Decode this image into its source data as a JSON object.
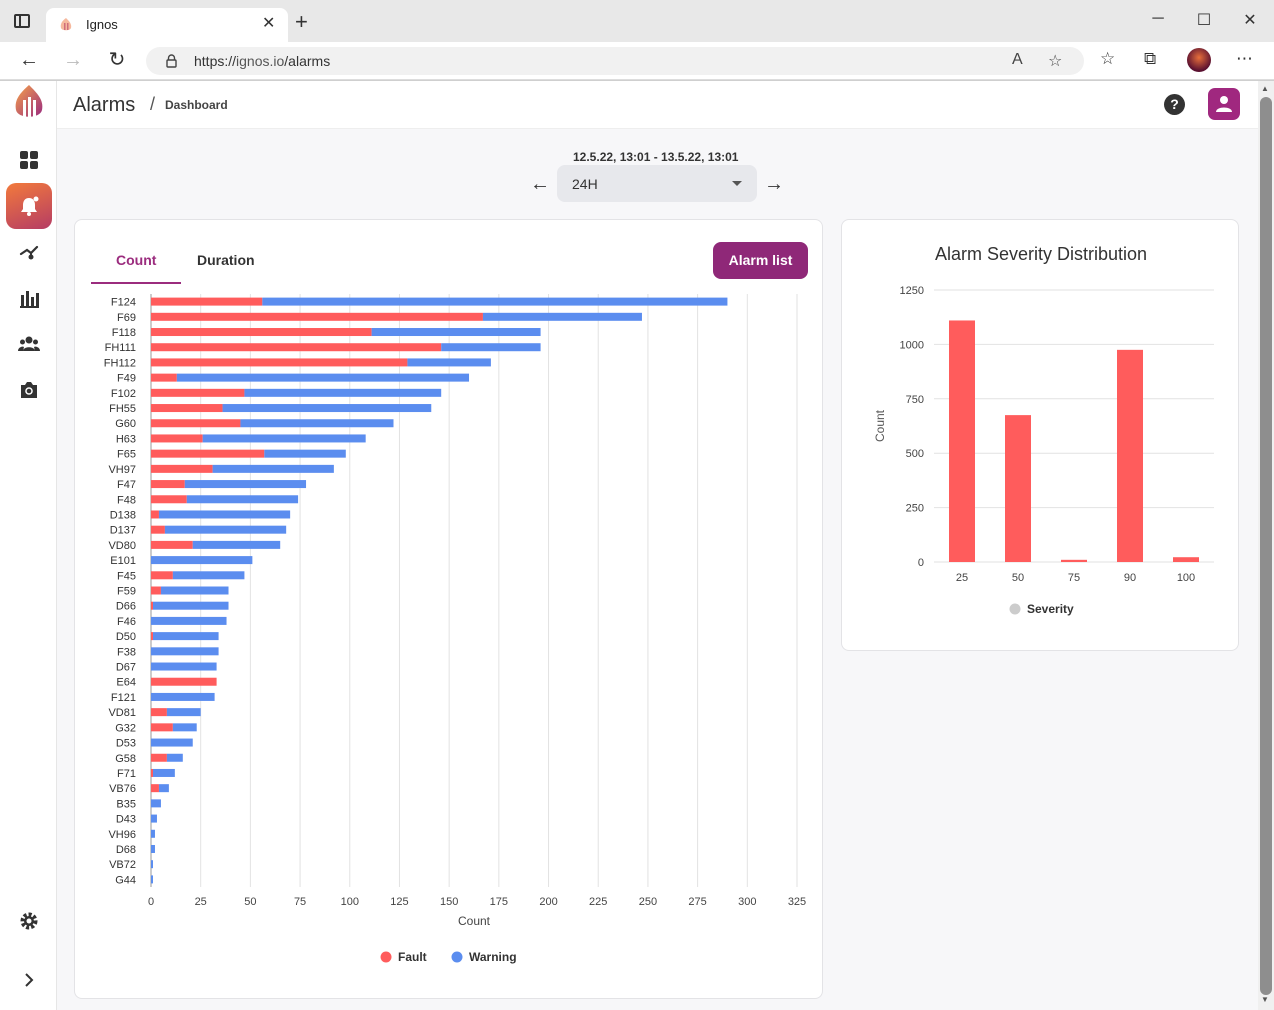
{
  "browser": {
    "tab_title": "Ignos",
    "tab_close": "✕",
    "new_tab": "+",
    "url_scheme": "https://",
    "url_host": "ignos.io",
    "url_path": "/alarms",
    "minimize": "─",
    "maximize": "☐",
    "close": "✕",
    "back": "←",
    "forward": "→",
    "reload": "↻",
    "more": "⋯"
  },
  "header": {
    "title": "Alarms",
    "separator": "/",
    "breadcrumb": "Dashboard",
    "help": "?"
  },
  "controls": {
    "date_range": "12.5.22, 13:01 - 13.5.22, 13:01",
    "period": "24H",
    "prev": "←",
    "next": "→"
  },
  "tabs": {
    "count": "Count",
    "duration": "Duration"
  },
  "alarm_list_button": "Alarm list",
  "colors": {
    "fault": "#ff5c5c",
    "warning": "#5b8def",
    "accent": "#8f2878",
    "severity": "#ff5c5c"
  },
  "chart_data": [
    {
      "type": "bar",
      "orientation": "horizontal",
      "stacked": true,
      "title": "",
      "xlabel": "Count",
      "ylabel": "",
      "xlim": [
        0,
        325
      ],
      "xticks": [
        0,
        25,
        50,
        75,
        100,
        125,
        150,
        175,
        200,
        225,
        250,
        275,
        300,
        325
      ],
      "grid": true,
      "legend_position": "bottom",
      "categories": [
        "F124",
        "F69",
        "F118",
        "FH111",
        "FH112",
        "F49",
        "F102",
        "FH55",
        "G60",
        "H63",
        "F65",
        "VH97",
        "F47",
        "F48",
        "D138",
        "D137",
        "VD80",
        "E101",
        "F45",
        "F59",
        "D66",
        "F46",
        "D50",
        "F38",
        "D67",
        "E64",
        "F121",
        "VD81",
        "G32",
        "D53",
        "G58",
        "F71",
        "VB76",
        "B35",
        "D43",
        "VH96",
        "D68",
        "VB72",
        "G44"
      ],
      "series": [
        {
          "name": "Fault",
          "values": [
            56,
            167,
            111,
            146,
            129,
            13,
            47,
            36,
            45,
            26,
            57,
            31,
            17,
            18,
            4,
            7,
            21,
            0,
            11,
            5,
            1,
            0,
            1,
            0,
            0,
            33,
            0,
            8,
            11,
            0,
            8,
            1,
            4,
            0,
            0,
            0,
            0,
            0,
            0
          ]
        },
        {
          "name": "Warning",
          "values": [
            234,
            80,
            85,
            50,
            42,
            147,
            99,
            105,
            77,
            82,
            41,
            61,
            61,
            56,
            66,
            61,
            44,
            51,
            36,
            34,
            38,
            38,
            33,
            34,
            33,
            0,
            32,
            17,
            12,
            21,
            8,
            11,
            5,
            5,
            3,
            2,
            2,
            1,
            1
          ]
        }
      ]
    },
    {
      "type": "bar",
      "title": "Alarm Severity Distribution",
      "xlabel": "",
      "ylabel": "Count",
      "ylim": [
        0,
        1250
      ],
      "yticks": [
        0,
        250,
        500,
        750,
        1000,
        1250
      ],
      "grid": true,
      "legend_position": "bottom",
      "categories": [
        "25",
        "50",
        "75",
        "90",
        "100"
      ],
      "series": [
        {
          "name": "Severity",
          "values": [
            1110,
            675,
            10,
            975,
            22
          ]
        }
      ]
    }
  ]
}
